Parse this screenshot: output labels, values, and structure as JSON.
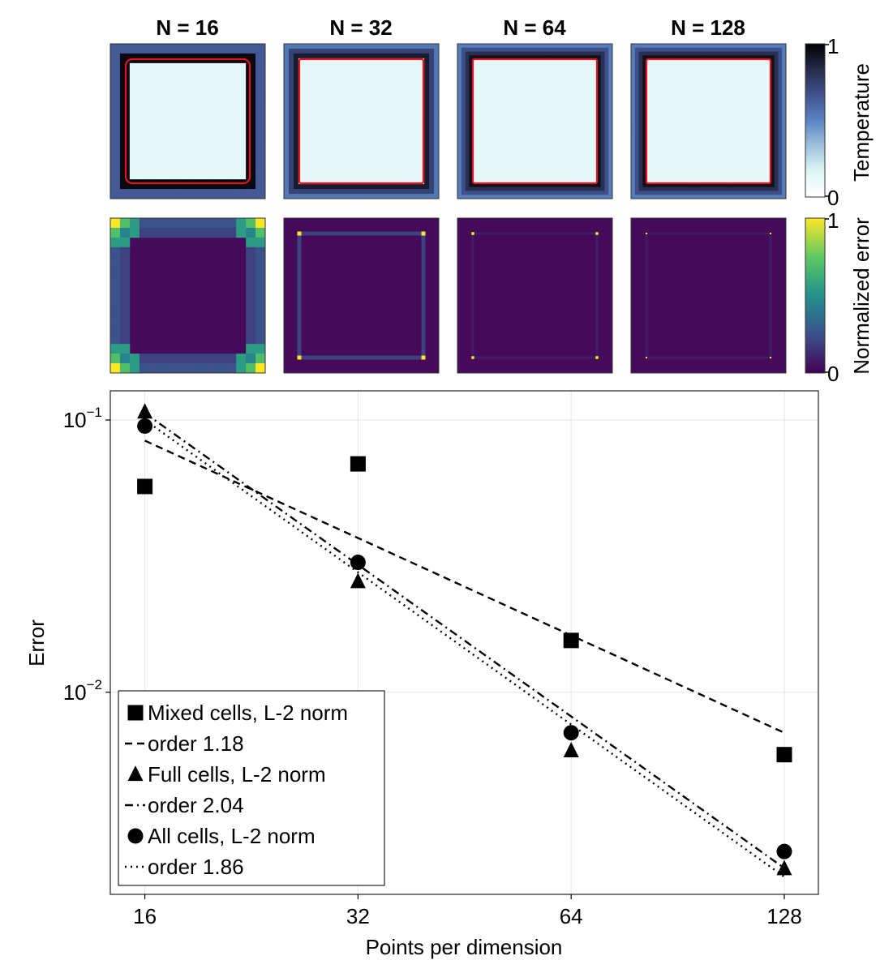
{
  "panel_titles": [
    "N = 16",
    "N = 32",
    "N = 64",
    "N = 128"
  ],
  "colorbars": {
    "temperature": {
      "label": "Temperature",
      "min_label": "0",
      "max_label": "1",
      "colormap": [
        "#ffffff",
        "#dff6f6",
        "#9fc2dc",
        "#5a84c2",
        "#40528f",
        "#262c4a",
        "#000000"
      ]
    },
    "error": {
      "label": "Normalized error",
      "min_label": "0",
      "max_label": "1",
      "colormap": [
        "#440154",
        "#3b528b",
        "#21918c",
        "#5ec962",
        "#fde725"
      ]
    }
  },
  "colors": {
    "interface": "#e8121c",
    "inside": "#e4f8f8",
    "error_bg": "#450a5a"
  },
  "chart_data": {
    "type": "scatter",
    "xlabel": "Points per dimension",
    "ylabel": "Error",
    "x_scale": "log2",
    "y_scale": "log10",
    "x_ticks": [
      "16",
      "32",
      "64",
      "128"
    ],
    "y_ticks": [
      {
        "value": 0.1,
        "base": "10",
        "exp": "−1"
      },
      {
        "value": 0.01,
        "base": "10",
        "exp": "−2"
      }
    ],
    "xlim": [
      14.3,
      143
    ],
    "ylim": [
      0.00181,
      0.128
    ],
    "grid": true,
    "legend_position": "bottom-left",
    "x": [
      16,
      32,
      64,
      128
    ],
    "series": [
      {
        "name": "Mixed cells, L-2 norm",
        "marker": "square",
        "values": [
          0.057,
          0.069,
          0.0155,
          0.0059
        ]
      },
      {
        "name": "order 1.18",
        "line": "dashed",
        "fit": [
          0.084,
          0.0071
        ]
      },
      {
        "name": "Full cells, L-2 norm",
        "marker": "triangle",
        "values": [
          0.107,
          0.0255,
          0.0061,
          0.00225
        ]
      },
      {
        "name": "order 2.04",
        "line": "dashdot",
        "fit": [
          0.106,
          0.00226
        ]
      },
      {
        "name": "All cells, L-2 norm",
        "marker": "circle",
        "values": [
          0.095,
          0.03,
          0.0071,
          0.0026
        ]
      },
      {
        "name": "order 1.86",
        "line": "dotted",
        "fit": [
          0.1,
          0.0021
        ]
      }
    ]
  }
}
